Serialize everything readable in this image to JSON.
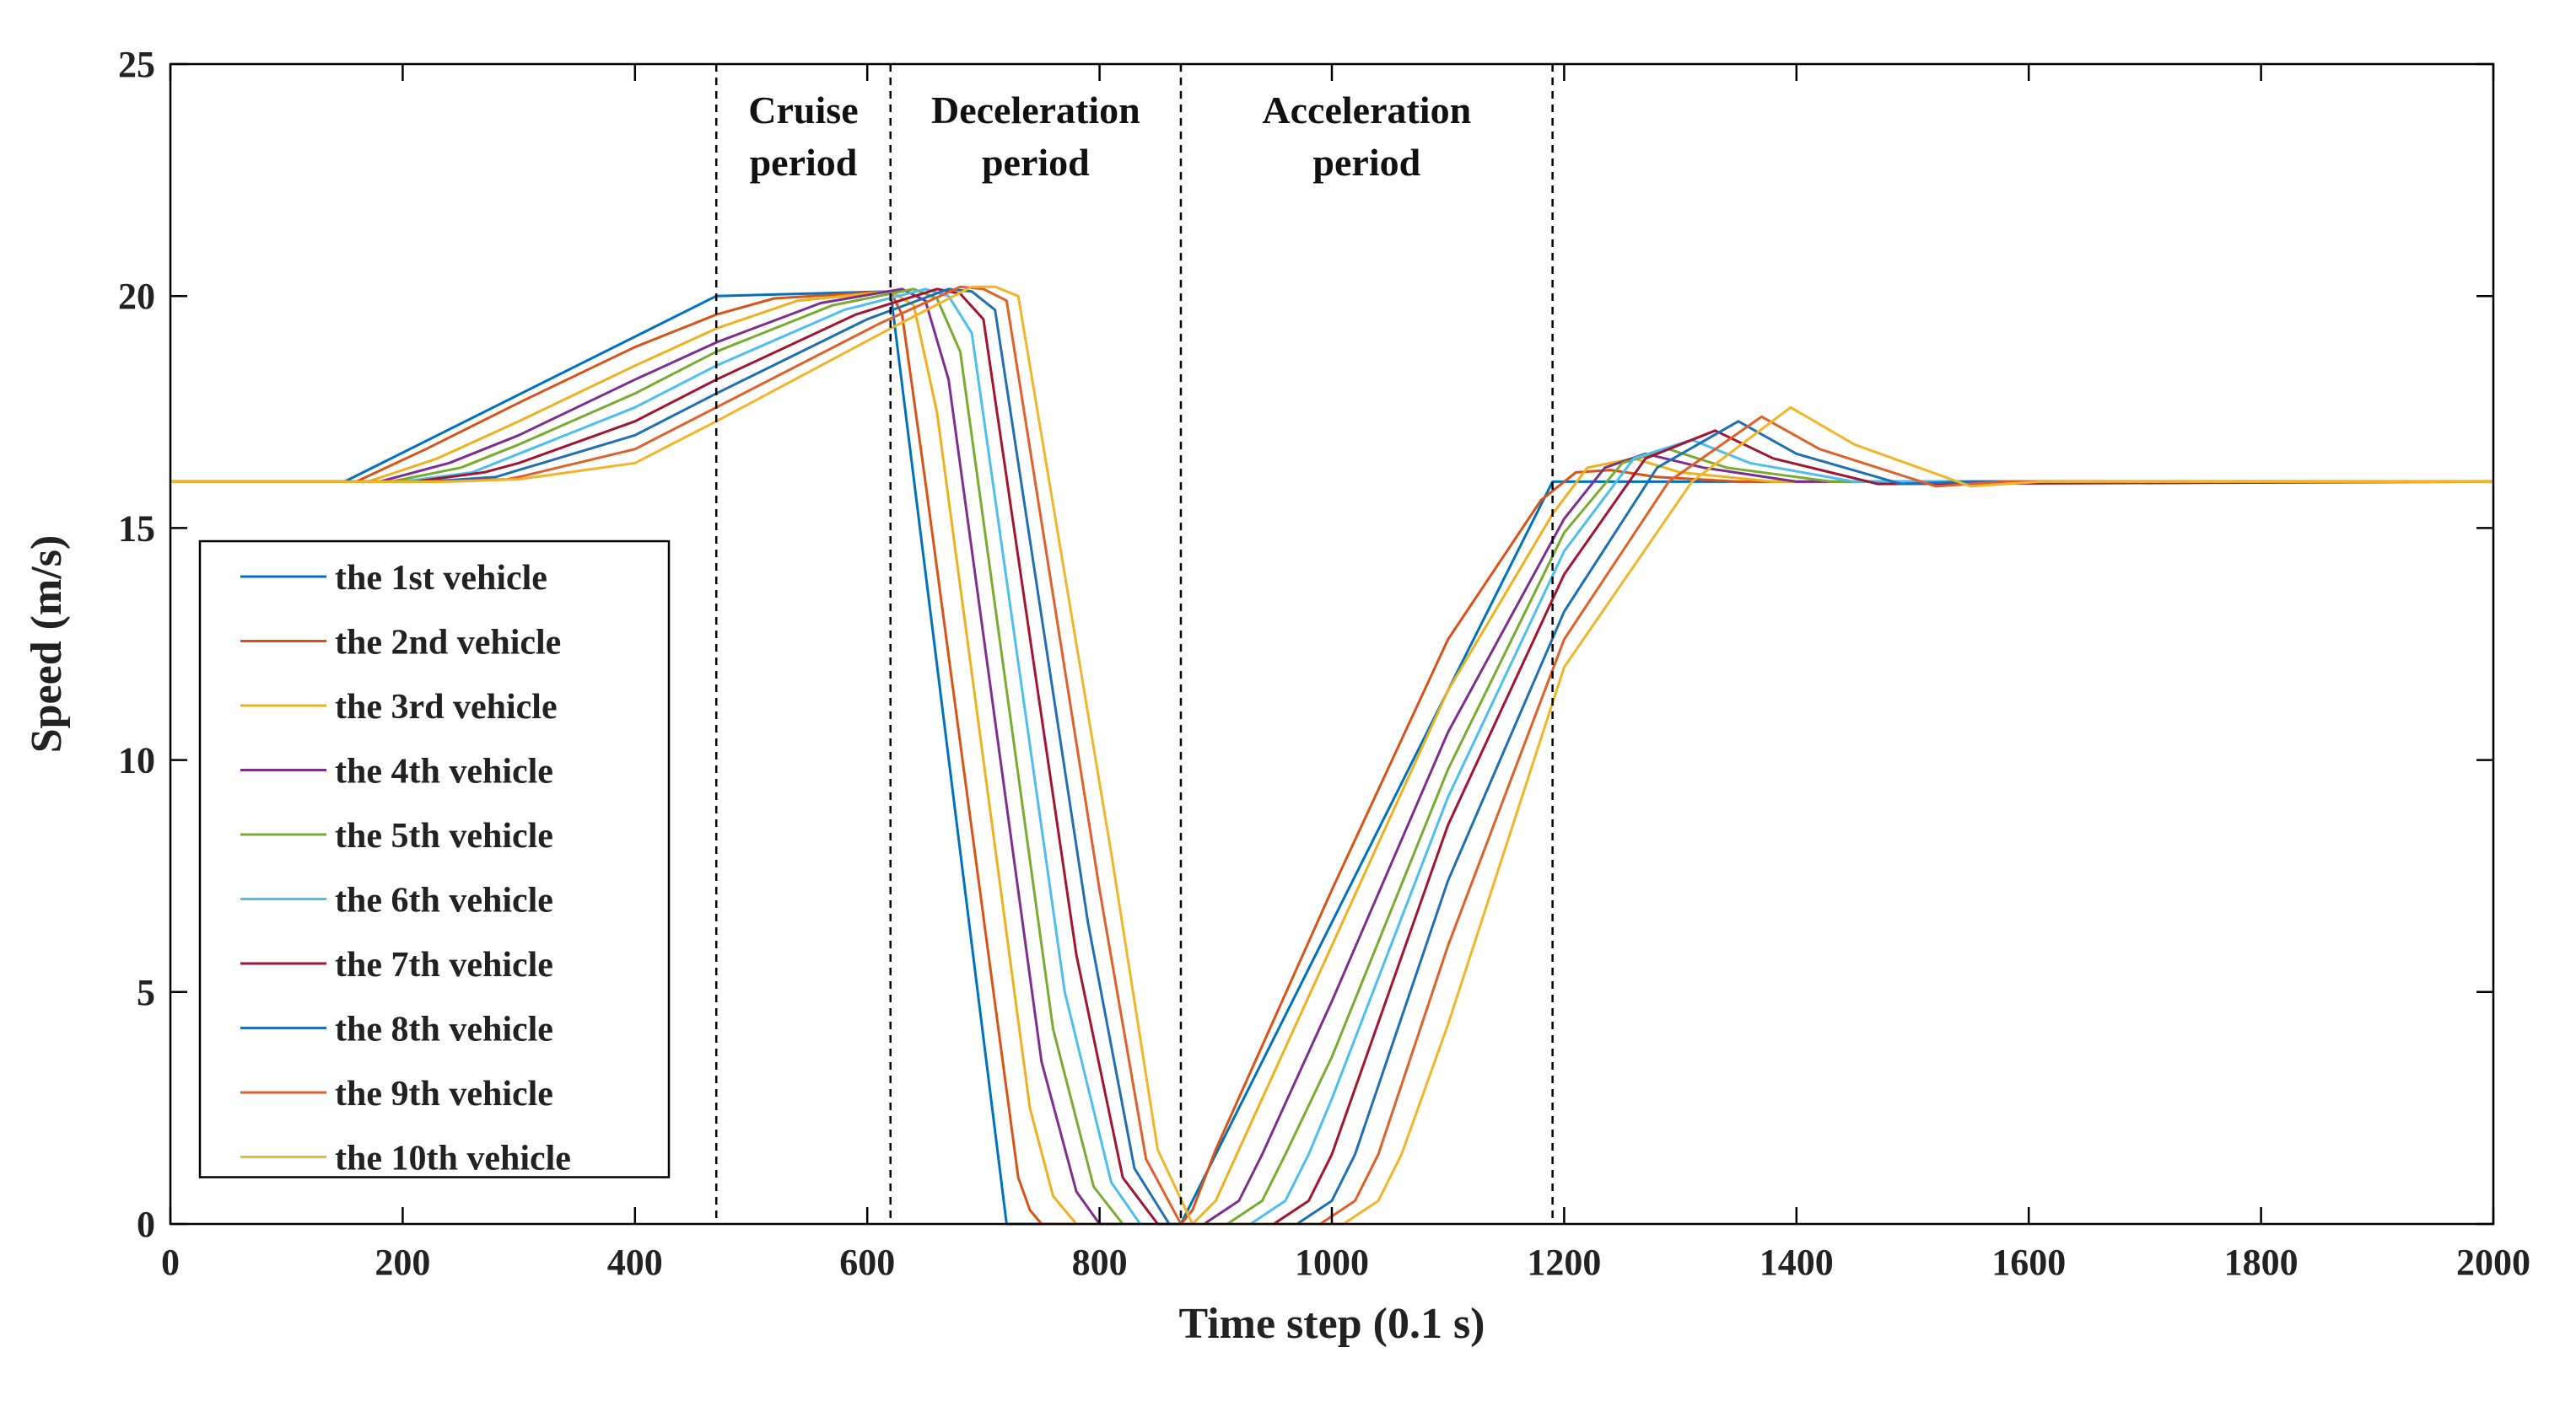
{
  "chart_data": {
    "type": "line",
    "title": "",
    "xlabel": "Time step (0.1 s)",
    "ylabel": "Speed (m/s)",
    "xlim": [
      0,
      2000
    ],
    "ylim": [
      0,
      25
    ],
    "xticks": [
      0,
      200,
      400,
      600,
      800,
      1000,
      1200,
      1400,
      1600,
      1800,
      2000
    ],
    "yticks": [
      0,
      5,
      10,
      15,
      20,
      25
    ],
    "grid": false,
    "legend_position": "bottom-left",
    "period_dividers": [
      470,
      620,
      870,
      1190
    ],
    "periods": [
      {
        "lines": [
          "Cruise",
          "period"
        ],
        "x_center": 545
      },
      {
        "lines": [
          "Deceleration",
          "period"
        ],
        "x_center": 745
      },
      {
        "lines": [
          "Acceleration",
          "period"
        ],
        "x_center": 1030
      }
    ],
    "series": [
      {
        "name": "the 1st vehicle",
        "color": "#0072BD",
        "points": [
          [
            0,
            16
          ],
          [
            150,
            16
          ],
          [
            470,
            20
          ],
          [
            620,
            20.1
          ],
          [
            720,
            0
          ],
          [
            870,
            0
          ],
          [
            1190,
            16
          ],
          [
            1210,
            16
          ],
          [
            2000,
            16
          ]
        ]
      },
      {
        "name": "the 2nd vehicle",
        "color": "#D95319",
        "points": [
          [
            0,
            16
          ],
          [
            160,
            16
          ],
          [
            220,
            16.7
          ],
          [
            300,
            17.7
          ],
          [
            400,
            18.9
          ],
          [
            470,
            19.6
          ],
          [
            520,
            19.95
          ],
          [
            620,
            20.1
          ],
          [
            630,
            19.6
          ],
          [
            650,
            16
          ],
          [
            730,
            1
          ],
          [
            740,
            0.3
          ],
          [
            750,
            0
          ],
          [
            870,
            0
          ],
          [
            880,
            0.3
          ],
          [
            900,
            1.6
          ],
          [
            1000,
            7.2
          ],
          [
            1100,
            12.6
          ],
          [
            1180,
            15.6
          ],
          [
            1210,
            16.2
          ],
          [
            1240,
            16.25
          ],
          [
            1280,
            16.1
          ],
          [
            1350,
            16
          ],
          [
            2000,
            16
          ]
        ]
      },
      {
        "name": "the 3rd vehicle",
        "color": "#EDB120",
        "points": [
          [
            0,
            16
          ],
          [
            170,
            16
          ],
          [
            230,
            16.5
          ],
          [
            300,
            17.3
          ],
          [
            400,
            18.5
          ],
          [
            470,
            19.3
          ],
          [
            540,
            19.9
          ],
          [
            620,
            20.1
          ],
          [
            640,
            19.8
          ],
          [
            660,
            17.5
          ],
          [
            740,
            2.5
          ],
          [
            760,
            0.6
          ],
          [
            780,
            0
          ],
          [
            880,
            0
          ],
          [
            900,
            0.5
          ],
          [
            920,
            1.6
          ],
          [
            1000,
            6
          ],
          [
            1100,
            11.5
          ],
          [
            1190,
            15.3
          ],
          [
            1220,
            16.3
          ],
          [
            1260,
            16.5
          ],
          [
            1300,
            16.2
          ],
          [
            1380,
            16
          ],
          [
            2000,
            16
          ]
        ]
      },
      {
        "name": "the 4th vehicle",
        "color": "#7E2F8E",
        "points": [
          [
            0,
            16
          ],
          [
            180,
            16
          ],
          [
            240,
            16.4
          ],
          [
            300,
            17
          ],
          [
            400,
            18.2
          ],
          [
            470,
            19
          ],
          [
            560,
            19.85
          ],
          [
            630,
            20.15
          ],
          [
            650,
            19.9
          ],
          [
            670,
            18.2
          ],
          [
            750,
            3.5
          ],
          [
            780,
            0.7
          ],
          [
            800,
            0
          ],
          [
            890,
            0
          ],
          [
            920,
            0.5
          ],
          [
            940,
            1.5
          ],
          [
            1000,
            4.8
          ],
          [
            1100,
            10.6
          ],
          [
            1200,
            15.2
          ],
          [
            1235,
            16.3
          ],
          [
            1270,
            16.6
          ],
          [
            1320,
            16.3
          ],
          [
            1400,
            16
          ],
          [
            2000,
            16
          ]
        ]
      },
      {
        "name": "the 5th vehicle",
        "color": "#77AC30",
        "points": [
          [
            0,
            16
          ],
          [
            190,
            16
          ],
          [
            250,
            16.3
          ],
          [
            300,
            16.8
          ],
          [
            400,
            17.9
          ],
          [
            470,
            18.8
          ],
          [
            570,
            19.8
          ],
          [
            640,
            20.15
          ],
          [
            660,
            19.95
          ],
          [
            680,
            18.8
          ],
          [
            760,
            4.2
          ],
          [
            795,
            0.8
          ],
          [
            820,
            0
          ],
          [
            910,
            0
          ],
          [
            940,
            0.5
          ],
          [
            960,
            1.5
          ],
          [
            1000,
            3.6
          ],
          [
            1100,
            9.8
          ],
          [
            1200,
            14.9
          ],
          [
            1250,
            16.4
          ],
          [
            1290,
            16.7
          ],
          [
            1340,
            16.3
          ],
          [
            1430,
            16
          ],
          [
            2000,
            16
          ]
        ]
      },
      {
        "name": "the 6th vehicle",
        "color": "#4DBEEE",
        "points": [
          [
            0,
            16
          ],
          [
            200,
            16
          ],
          [
            260,
            16.2
          ],
          [
            300,
            16.6
          ],
          [
            400,
            17.6
          ],
          [
            470,
            18.5
          ],
          [
            580,
            19.7
          ],
          [
            650,
            20.15
          ],
          [
            670,
            20
          ],
          [
            690,
            19.2
          ],
          [
            770,
            5
          ],
          [
            810,
            0.9
          ],
          [
            835,
            0
          ],
          [
            930,
            0
          ],
          [
            960,
            0.5
          ],
          [
            980,
            1.5
          ],
          [
            1000,
            2.7
          ],
          [
            1100,
            9.2
          ],
          [
            1200,
            14.5
          ],
          [
            1260,
            16.5
          ],
          [
            1310,
            16.9
          ],
          [
            1360,
            16.4
          ],
          [
            1450,
            16
          ],
          [
            2000,
            16
          ]
        ]
      },
      {
        "name": "the 7th vehicle",
        "color": "#A2142F",
        "points": [
          [
            0,
            16
          ],
          [
            210,
            16
          ],
          [
            270,
            16.2
          ],
          [
            300,
            16.4
          ],
          [
            400,
            17.3
          ],
          [
            470,
            18.2
          ],
          [
            590,
            19.6
          ],
          [
            660,
            20.15
          ],
          [
            680,
            20.05
          ],
          [
            700,
            19.5
          ],
          [
            780,
            5.8
          ],
          [
            820,
            1
          ],
          [
            850,
            0
          ],
          [
            950,
            0
          ],
          [
            980,
            0.5
          ],
          [
            1000,
            1.5
          ],
          [
            1100,
            8.6
          ],
          [
            1200,
            14
          ],
          [
            1270,
            16.5
          ],
          [
            1330,
            17.1
          ],
          [
            1380,
            16.5
          ],
          [
            1470,
            15.95
          ],
          [
            2000,
            16
          ]
        ]
      },
      {
        "name": "the 8th vehicle",
        "color": "#1F6FB5",
        "points": [
          [
            0,
            16
          ],
          [
            220,
            16
          ],
          [
            280,
            16.1
          ],
          [
            300,
            16.25
          ],
          [
            400,
            17
          ],
          [
            470,
            17.9
          ],
          [
            600,
            19.5
          ],
          [
            670,
            20.15
          ],
          [
            690,
            20.1
          ],
          [
            710,
            19.7
          ],
          [
            790,
            6.5
          ],
          [
            830,
            1.2
          ],
          [
            860,
            0
          ],
          [
            970,
            0
          ],
          [
            1000,
            0.5
          ],
          [
            1020,
            1.5
          ],
          [
            1100,
            7.4
          ],
          [
            1200,
            13.2
          ],
          [
            1280,
            16.3
          ],
          [
            1350,
            17.3
          ],
          [
            1400,
            16.6
          ],
          [
            1490,
            15.95
          ],
          [
            1550,
            16
          ],
          [
            2000,
            16
          ]
        ]
      },
      {
        "name": "the 9th vehicle",
        "color": "#E0602A",
        "points": [
          [
            0,
            16
          ],
          [
            230,
            16
          ],
          [
            290,
            16.05
          ],
          [
            300,
            16.1
          ],
          [
            400,
            16.7
          ],
          [
            470,
            17.6
          ],
          [
            610,
            19.4
          ],
          [
            680,
            20.2
          ],
          [
            700,
            20.15
          ],
          [
            720,
            19.9
          ],
          [
            800,
            7.2
          ],
          [
            840,
            1.4
          ],
          [
            870,
            0
          ],
          [
            990,
            0
          ],
          [
            1020,
            0.5
          ],
          [
            1040,
            1.5
          ],
          [
            1100,
            6
          ],
          [
            1200,
            12.6
          ],
          [
            1290,
            16
          ],
          [
            1370,
            17.4
          ],
          [
            1420,
            16.7
          ],
          [
            1520,
            15.9
          ],
          [
            1580,
            16
          ],
          [
            2000,
            16
          ]
        ]
      },
      {
        "name": "the 10th vehicle",
        "color": "#F2B52A",
        "points": [
          [
            0,
            16
          ],
          [
            240,
            16
          ],
          [
            300,
            16.05
          ],
          [
            400,
            16.4
          ],
          [
            470,
            17.3
          ],
          [
            620,
            19.3
          ],
          [
            690,
            20.2
          ],
          [
            710,
            20.2
          ],
          [
            730,
            20
          ],
          [
            810,
            8
          ],
          [
            850,
            1.6
          ],
          [
            880,
            0
          ],
          [
            1010,
            0
          ],
          [
            1040,
            0.5
          ],
          [
            1060,
            1.5
          ],
          [
            1100,
            4.3
          ],
          [
            1200,
            12
          ],
          [
            1310,
            16
          ],
          [
            1395,
            17.6
          ],
          [
            1450,
            16.8
          ],
          [
            1550,
            15.9
          ],
          [
            1610,
            16
          ],
          [
            2000,
            16
          ]
        ]
      }
    ]
  }
}
